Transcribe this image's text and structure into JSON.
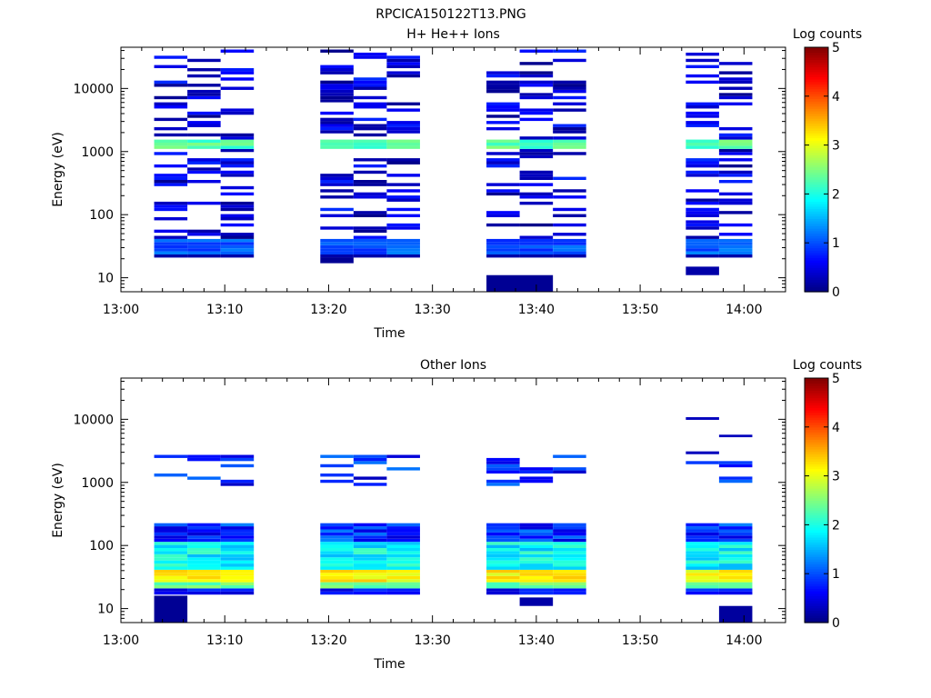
{
  "figure": {
    "title": "RPCICA150122T13.PNG"
  },
  "chart_data": [
    {
      "type": "heatmap",
      "title": "H+ He++ Ions",
      "xlabel": "Time",
      "ylabel": "Energy (eV)",
      "x_ticks": [
        "13:00",
        "13:10",
        "13:20",
        "13:30",
        "13:40",
        "13:50",
        "14:00"
      ],
      "xlim_minutes": [
        0,
        64
      ],
      "y_ticks": [
        "10",
        "100",
        "1000",
        "10000"
      ],
      "y_scale": "log",
      "ylim": [
        6,
        45000
      ],
      "colorbar": {
        "label": "Log counts",
        "ticks": [
          "0",
          "1",
          "2",
          "3",
          "4",
          "5"
        ],
        "range": [
          0,
          5
        ]
      },
      "columns": [
        {
          "t_start": 3.2,
          "t_end": 6.4,
          "profile": "sparse",
          "seed": 11
        },
        {
          "t_start": 6.4,
          "t_end": 9.6,
          "profile": "sparse",
          "seed": 12
        },
        {
          "t_start": 9.6,
          "t_end": 12.8,
          "profile": "sparse",
          "seed": 13
        },
        {
          "t_start": 19.2,
          "t_end": 22.4,
          "profile": "sparse",
          "seed": 21
        },
        {
          "t_start": 22.4,
          "t_end": 25.6,
          "profile": "sparse",
          "seed": 22
        },
        {
          "t_start": 25.6,
          "t_end": 28.8,
          "profile": "sparse",
          "seed": 23
        },
        {
          "t_start": 35.2,
          "t_end": 38.4,
          "profile": "sparse",
          "seed": 31
        },
        {
          "t_start": 38.4,
          "t_end": 41.6,
          "profile": "sparse",
          "seed": 32
        },
        {
          "t_start": 41.6,
          "t_end": 44.8,
          "profile": "sparse",
          "seed": 33
        },
        {
          "t_start": 54.4,
          "t_end": 57.6,
          "profile": "sparse",
          "seed": 41
        },
        {
          "t_start": 57.6,
          "t_end": 60.8,
          "profile": "sparse",
          "seed": 42
        }
      ],
      "blocks": [
        {
          "t_start": 35.2,
          "t_end": 41.6,
          "e_low": 6,
          "e_high": 11,
          "value": 0.1
        },
        {
          "t_start": 54.4,
          "t_end": 57.6,
          "e_low": 11,
          "e_high": 15,
          "value": 0.2
        },
        {
          "t_start": 19.2,
          "t_end": 22.4,
          "e_low": 17,
          "e_high": 21,
          "value": 0.1
        }
      ]
    },
    {
      "type": "heatmap",
      "title": "Other Ions",
      "xlabel": "Time",
      "ylabel": "Energy (eV)",
      "x_ticks": [
        "13:00",
        "13:10",
        "13:20",
        "13:30",
        "13:40",
        "13:50",
        "14:00"
      ],
      "xlim_minutes": [
        0,
        64
      ],
      "y_ticks": [
        "10",
        "100",
        "1000",
        "10000"
      ],
      "y_scale": "log",
      "ylim": [
        6,
        45000
      ],
      "colorbar": {
        "label": "Log counts",
        "ticks": [
          "0",
          "1",
          "2",
          "3",
          "4",
          "5"
        ],
        "range": [
          0,
          5
        ]
      },
      "columns": [
        {
          "t_start": 3.2,
          "t_end": 6.4,
          "profile": "dense",
          "seed": 51
        },
        {
          "t_start": 6.4,
          "t_end": 9.6,
          "profile": "dense",
          "seed": 52
        },
        {
          "t_start": 9.6,
          "t_end": 12.8,
          "profile": "dense",
          "seed": 53
        },
        {
          "t_start": 19.2,
          "t_end": 22.4,
          "profile": "dense",
          "seed": 61
        },
        {
          "t_start": 22.4,
          "t_end": 25.6,
          "profile": "dense",
          "seed": 62
        },
        {
          "t_start": 25.6,
          "t_end": 28.8,
          "profile": "dense",
          "seed": 63
        },
        {
          "t_start": 35.2,
          "t_end": 38.4,
          "profile": "dense",
          "seed": 71
        },
        {
          "t_start": 38.4,
          "t_end": 41.6,
          "profile": "dense",
          "seed": 72
        },
        {
          "t_start": 41.6,
          "t_end": 44.8,
          "profile": "dense",
          "seed": 73
        },
        {
          "t_start": 54.4,
          "t_end": 57.6,
          "profile": "dense",
          "seed": 81
        },
        {
          "t_start": 57.6,
          "t_end": 60.8,
          "profile": "dense",
          "seed": 82
        }
      ],
      "blocks": [
        {
          "t_start": 3.2,
          "t_end": 6.4,
          "e_low": 6,
          "e_high": 16,
          "value": 0.1
        },
        {
          "t_start": 57.6,
          "t_end": 60.8,
          "e_low": 6,
          "e_high": 11,
          "value": 0.15
        },
        {
          "t_start": 38.4,
          "t_end": 41.6,
          "e_low": 11,
          "e_high": 15,
          "value": 0.2
        },
        {
          "t_start": 54.4,
          "t_end": 57.6,
          "e_low": 9800,
          "e_high": 10800,
          "value": 0.3
        },
        {
          "t_start": 54.4,
          "t_end": 57.6,
          "e_low": 2800,
          "e_high": 3100,
          "value": 0.3
        },
        {
          "t_start": 57.6,
          "t_end": 60.8,
          "e_low": 5200,
          "e_high": 5700,
          "value": 0.3
        }
      ]
    }
  ]
}
